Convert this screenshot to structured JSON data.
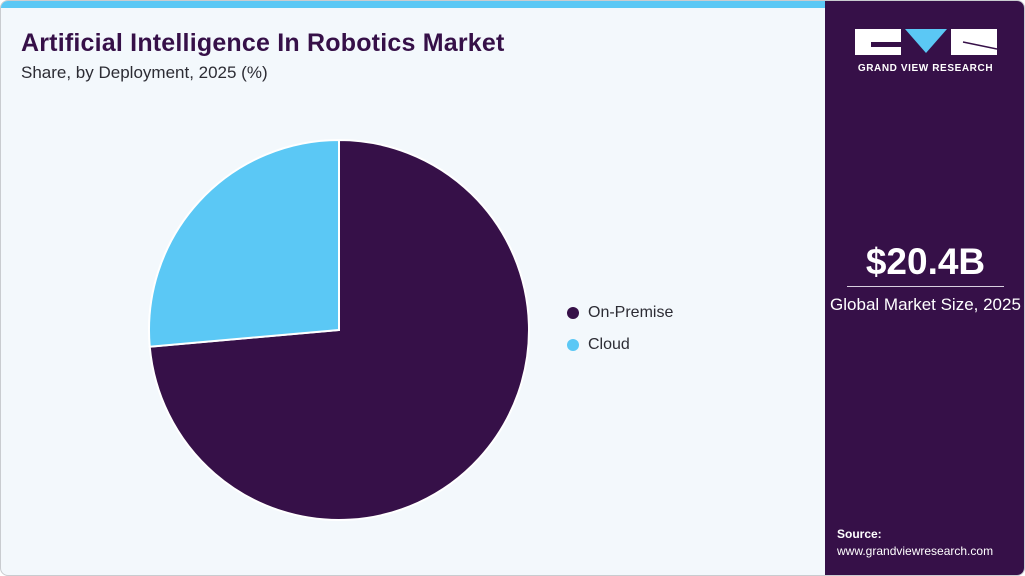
{
  "header": {
    "title": "Artificial Intelligence In Robotics Market",
    "subtitle": "Share, by Deployment, 2025 (%)"
  },
  "colors": {
    "on_premise": "#361048",
    "cloud": "#5bc8f5",
    "accent_bar": "#5bc8f5",
    "sidebar_bg": "#361048"
  },
  "legend": {
    "items": [
      {
        "label": "On-Premise",
        "color": "#361048"
      },
      {
        "label": "Cloud",
        "color": "#5bc8f5"
      }
    ]
  },
  "sidebar": {
    "logo_text": "GRAND VIEW RESEARCH",
    "market_value": "$20.4B",
    "market_label": "Global Market Size, 2025",
    "source_label": "Source:",
    "source_url": "www.grandviewresearch.com"
  },
  "chart_data": {
    "type": "pie",
    "title": "Artificial Intelligence In Robotics Market",
    "subtitle": "Share, by Deployment, 2025 (%)",
    "categories": [
      "On-Premise",
      "Cloud"
    ],
    "values": [
      73.6,
      26.4
    ],
    "colors": [
      "#361048",
      "#5bc8f5"
    ],
    "start_angle_deg": 0,
    "direction": "clockwise",
    "legend_position": "right",
    "data_labels": false
  }
}
